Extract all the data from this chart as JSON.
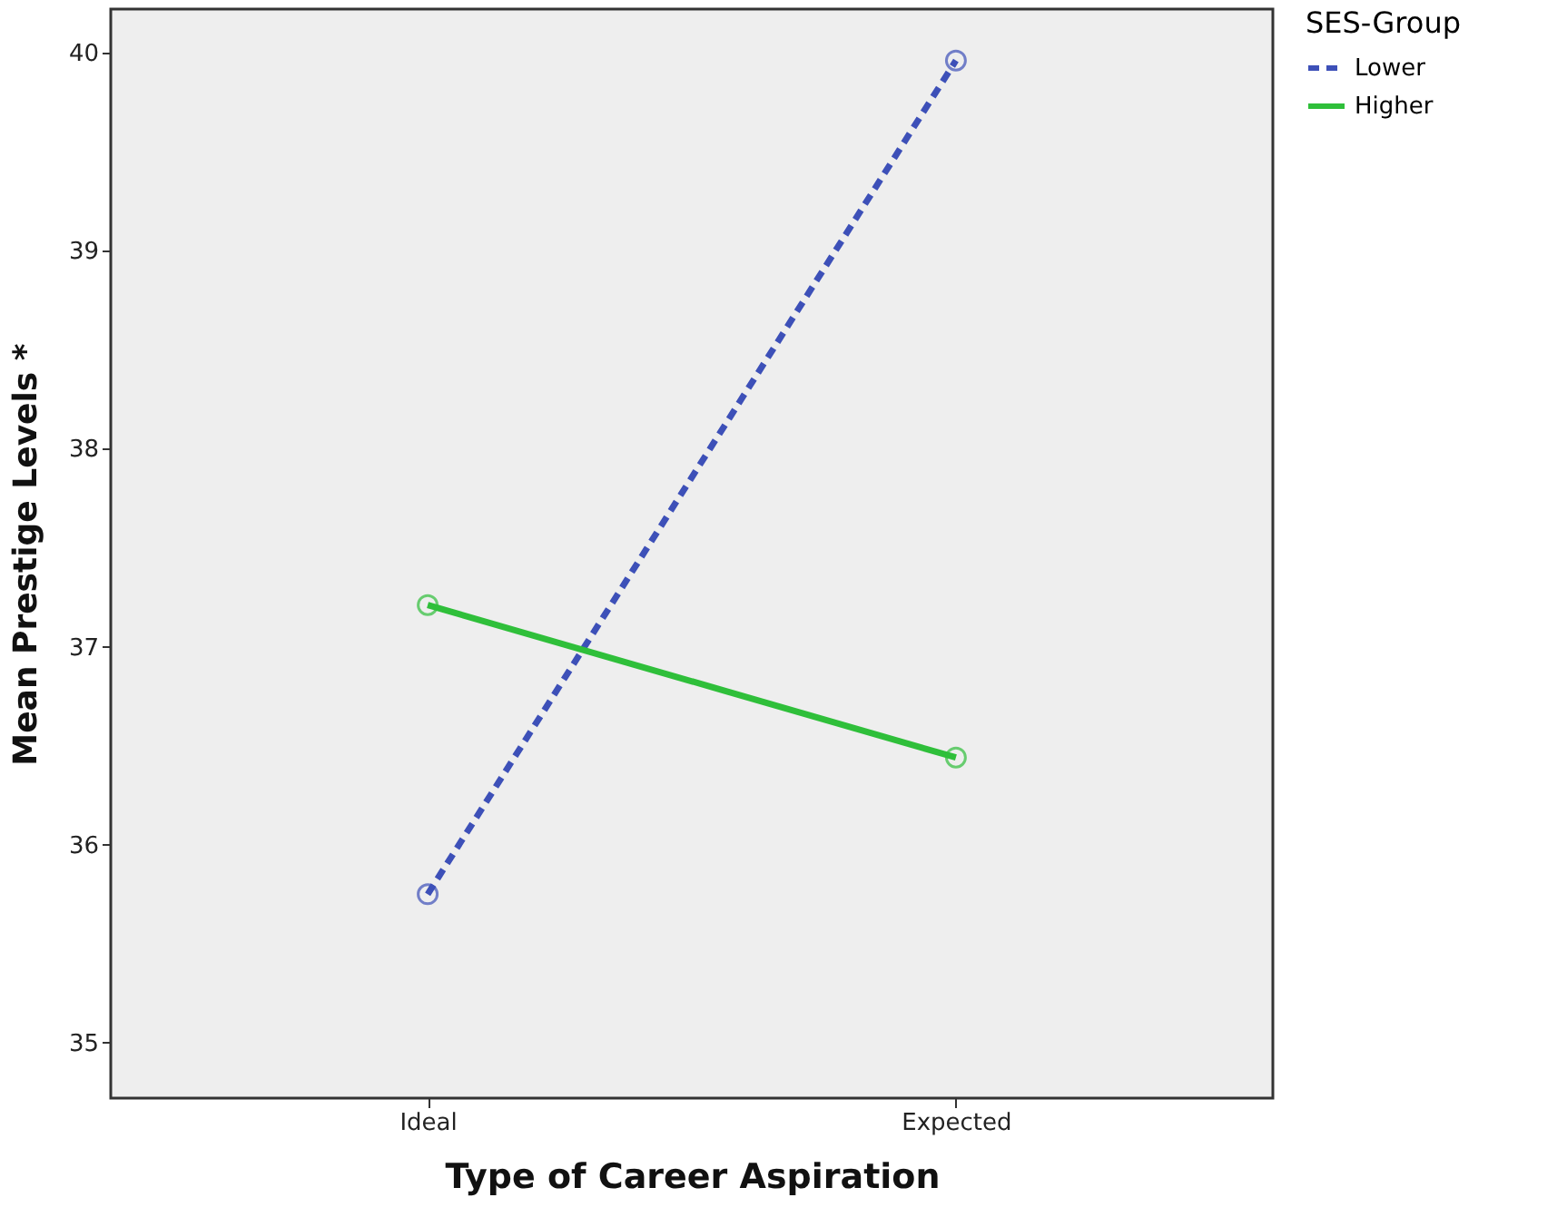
{
  "chart_data": {
    "type": "line",
    "xlabel": "Type of Career Aspiration",
    "ylabel": "Mean Prestige Levels *",
    "legend_title": "SES-Group",
    "categories": [
      "Ideal",
      "Expected"
    ],
    "series": [
      {
        "name": "Lower",
        "color": "#3d50b8",
        "values": [
          35.75,
          39.96
        ],
        "line_style": "dashed"
      },
      {
        "name": "Higher",
        "color": "#2fbf3a",
        "values": [
          37.21,
          36.44
        ],
        "line_style": "solid"
      }
    ],
    "ylim": [
      34.72,
      40.22
    ],
    "yticks": [
      35,
      36,
      37,
      38,
      39,
      40
    ],
    "grid": false,
    "legend": "top right",
    "marker": "circle"
  }
}
